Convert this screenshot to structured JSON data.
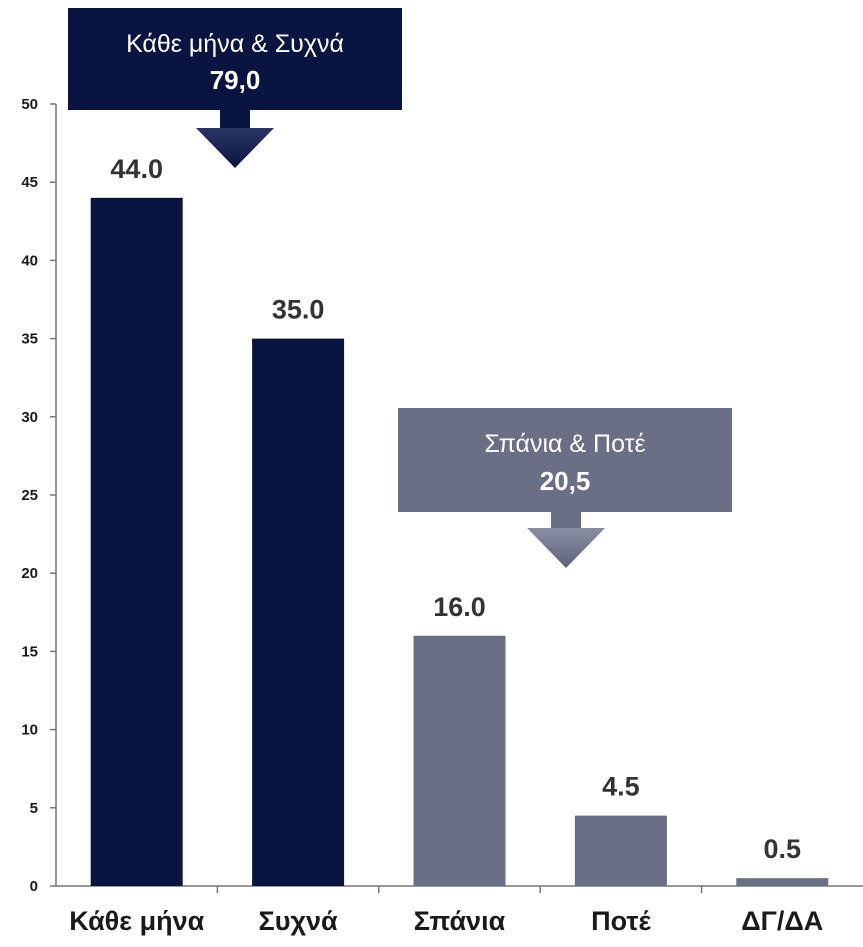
{
  "chart_data": {
    "type": "bar",
    "categories": [
      "Κάθε μήνα",
      "Συχνά",
      "Σπάνια",
      "Ποτέ",
      "ΔΓ/ΔΑ"
    ],
    "values": [
      44.0,
      35.0,
      16.0,
      4.5,
      0.5
    ],
    "value_labels": [
      "44.0",
      "35.0",
      "16.0",
      "4.5",
      "0.5"
    ],
    "bar_colors": [
      "#0a1440",
      "#0a1440",
      "#6b6f85",
      "#6b6f85",
      "#6b6f85"
    ],
    "ylim": [
      0,
      50
    ],
    "yticks": [
      0,
      5,
      10,
      15,
      20,
      25,
      30,
      35,
      40,
      45,
      50
    ],
    "grid": false,
    "callouts": [
      {
        "title": "Κάθε μήνα & Συχνά",
        "value": "79,0",
        "color": "#0a1440",
        "groups": [
          0,
          1
        ]
      },
      {
        "title": "Σπάνια & Ποτέ",
        "value": "20,5",
        "color": "#6b6f85",
        "groups": [
          2,
          3
        ]
      }
    ]
  }
}
